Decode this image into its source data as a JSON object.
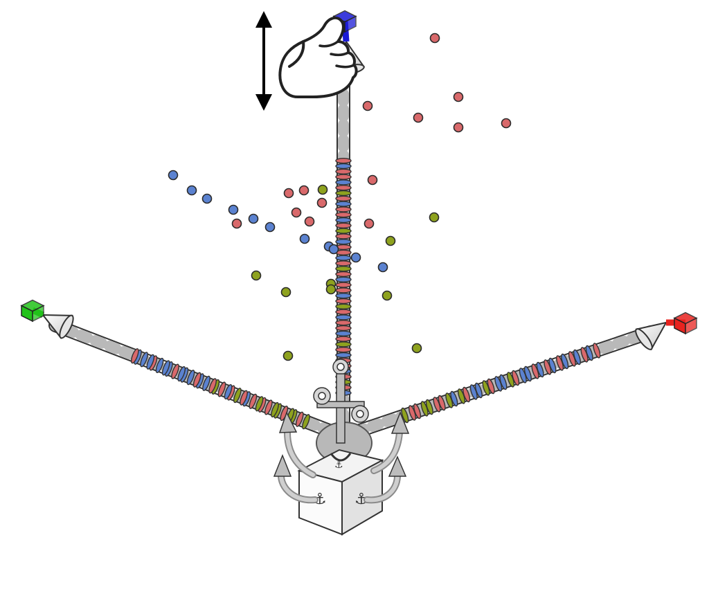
{
  "scene": {
    "description_visible_text": [],
    "axes": [
      {
        "id": "x",
        "handle_color": "#e8231f"
      },
      {
        "id": "y",
        "handle_color": "#22c21a"
      },
      {
        "id": "z",
        "handle_color": "#1b1bd6"
      }
    ],
    "active_axis": "z",
    "drag_direction": "vertical",
    "point_colors": {
      "red": "#d9696b",
      "blue": "#5b82d0",
      "green": "#8ea21e"
    },
    "icons": {
      "hand": "pointing-hand-icon",
      "drag": "double-headed-arrow-icon",
      "anchor": "anchor-icon",
      "cube": "origin-cube-icon"
    }
  }
}
